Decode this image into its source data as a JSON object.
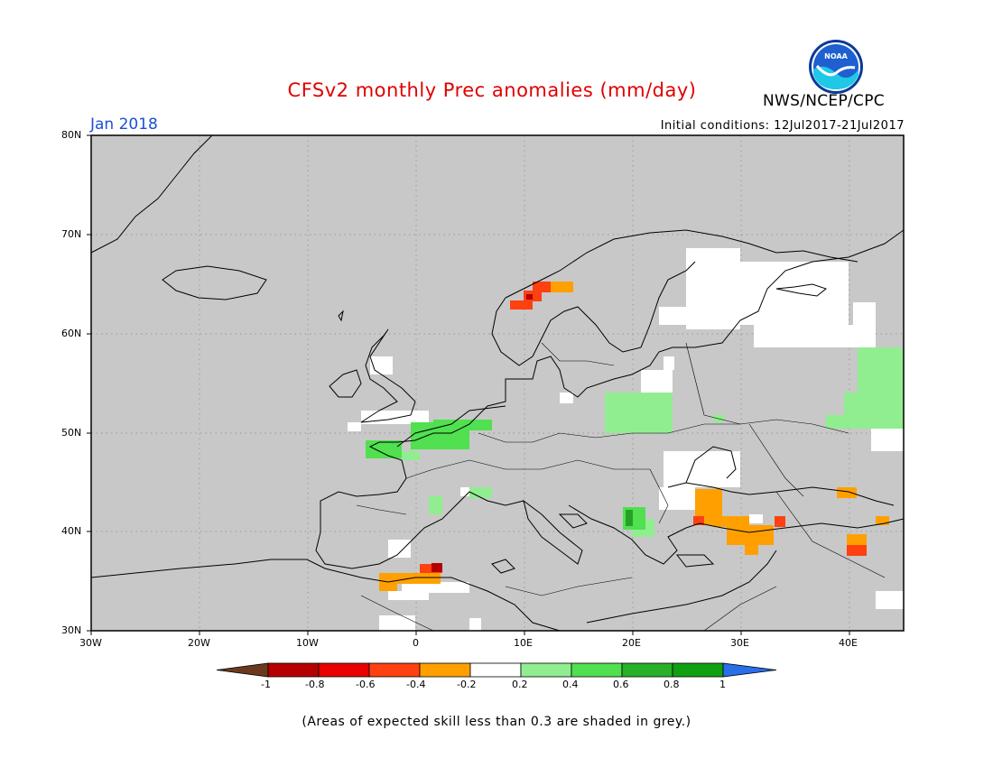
{
  "title": "CFSv2 monthly Prec anomalies (mm/day)",
  "agency": "NWS/NCEP/CPC",
  "logo_text": "NOAA",
  "month": "Jan 2018",
  "initial_conditions": "Initial conditions: 12Jul2017-21Jul2017",
  "lat_labels": [
    "80N",
    "70N",
    "60N",
    "50N",
    "40N",
    "30N"
  ],
  "lon_labels": [
    "30W",
    "20W",
    "10W",
    "0",
    "10E",
    "20E",
    "30E",
    "40E"
  ],
  "colorbar": {
    "labels": [
      "-1",
      "-0.8",
      "-0.6",
      "-0.4",
      "-0.2",
      "0.2",
      "0.4",
      "0.6",
      "0.8",
      "1"
    ],
    "colors": [
      "#6b3a1e",
      "#b50000",
      "#e80000",
      "#ff4010",
      "#ffa000",
      "#ffffff",
      "#90ee90",
      "#50e050",
      "#28b028",
      "#10a010",
      "#2a6ee8"
    ]
  },
  "note": "(Areas of expected skill less than 0.3 are shaded in grey.)",
  "colors": {
    "grey": "#c8c8c8",
    "title": "#e00000",
    "month": "#1b4fd6"
  }
}
